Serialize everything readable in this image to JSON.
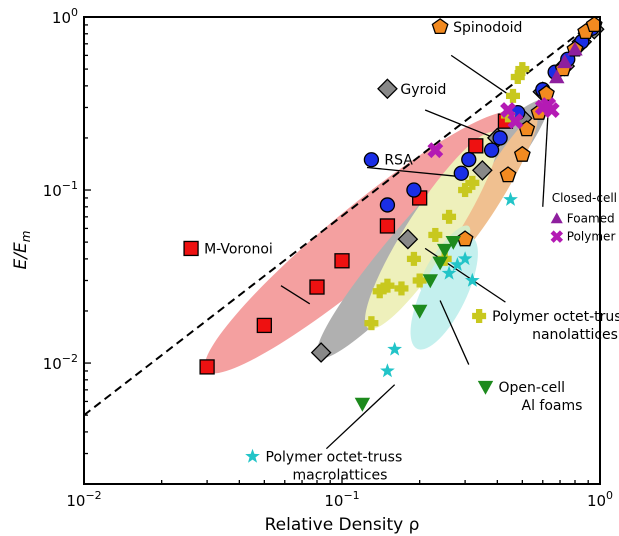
{
  "chart_data": {
    "type": "scatter",
    "title": "",
    "xlabel": "Relative Density ρ",
    "ylabel": "E/E_m",
    "xscale": "log",
    "yscale": "log",
    "xlim": [
      0.01,
      1
    ],
    "ylim": [
      0.002,
      1
    ],
    "x_ticks": [
      {
        "value": 0.01,
        "base": "10",
        "exp": "−2"
      },
      {
        "value": 0.1,
        "base": "10",
        "exp": "−1"
      },
      {
        "value": 1,
        "base": "10",
        "exp": "0"
      }
    ],
    "y_ticks": [
      {
        "value": 0.01,
        "base": "10",
        "exp": "−2"
      },
      {
        "value": 0.1,
        "base": "10",
        "exp": "−1"
      },
      {
        "value": 1,
        "base": "10",
        "exp": "0"
      }
    ],
    "reference_line": {
      "style": "dashed",
      "color": "#000000",
      "x": [
        0.01,
        1
      ],
      "y": [
        0.005,
        1
      ]
    },
    "bands": [
      {
        "name": "M-Voronoi",
        "color": "#f4a0a0",
        "x": [
          0.031,
          0.45
        ],
        "y": [
          0.0095,
          0.26
        ],
        "thickness": 0.16
      },
      {
        "name": "Gyroid",
        "color": "#b0b0b0",
        "x": [
          0.084,
          0.6
        ],
        "y": [
          0.0115,
          0.31
        ],
        "thickness": 0.14
      },
      {
        "name": "Spinodoid",
        "color": "#f0c090",
        "x": [
          0.27,
          0.55
        ],
        "y": [
          0.042,
          0.25
        ],
        "thickness": 0.13
      },
      {
        "name": "Polymer octet-truss nanolattices",
        "color": "#eef0bb",
        "x": [
          0.13,
          0.38
        ],
        "y": [
          0.017,
          0.2
        ],
        "thickness": 0.19
      },
      {
        "name": "Open-cell Al foams",
        "color": "#d4ecc8",
        "x": [
          0.21,
          0.3
        ],
        "y": [
          0.028,
          0.058
        ],
        "thickness": 0.24
      },
      {
        "name": "Polymer octet-truss macrolattices",
        "color": "#c4f0ee",
        "x": [
          0.2,
          0.31
        ],
        "y": [
          0.013,
          0.05
        ],
        "thickness": 0.34
      }
    ],
    "series": [
      {
        "name": "M-Voronoi",
        "marker": "square",
        "color": "#ee1111",
        "x": [
          0.03,
          0.05,
          0.08,
          0.1,
          0.15,
          0.2,
          0.33,
          0.43
        ],
        "y": [
          0.0095,
          0.0165,
          0.0275,
          0.039,
          0.062,
          0.09,
          0.18,
          0.25
        ]
      },
      {
        "name": "Gyroid",
        "marker": "diamond",
        "color": "#888888",
        "x": [
          0.083,
          0.18,
          0.35,
          0.4,
          0.5,
          0.6,
          0.73,
          0.85,
          0.95
        ],
        "y": [
          0.0115,
          0.052,
          0.13,
          0.2,
          0.26,
          0.37,
          0.52,
          0.72,
          0.85
        ]
      },
      {
        "name": "RSA",
        "marker": "circle",
        "color": "#1a2ee6",
        "x": [
          0.15,
          0.19,
          0.29,
          0.31,
          0.38,
          0.41,
          0.48,
          0.6,
          0.67,
          0.75,
          0.85,
          0.93
        ],
        "y": [
          0.082,
          0.1,
          0.125,
          0.15,
          0.17,
          0.2,
          0.28,
          0.38,
          0.48,
          0.57,
          0.72,
          0.86
        ]
      },
      {
        "name": "Spinodoid",
        "marker": "pentagon",
        "color": "#f28a20",
        "x": [
          0.3,
          0.44,
          0.5,
          0.52,
          0.58,
          0.62,
          0.72,
          0.8,
          0.88,
          0.95
        ],
        "y": [
          0.052,
          0.122,
          0.16,
          0.225,
          0.28,
          0.36,
          0.5,
          0.65,
          0.82,
          0.9
        ]
      },
      {
        "name": "Polymer octet-truss nanolattices",
        "marker": "plus",
        "color": "#c8c81e",
        "x": [
          0.13,
          0.14,
          0.15,
          0.17,
          0.19,
          0.2,
          0.23,
          0.25,
          0.26,
          0.3,
          0.32,
          0.44,
          0.46,
          0.48,
          0.5
        ],
        "y": [
          0.017,
          0.026,
          0.028,
          0.027,
          0.04,
          0.03,
          0.055,
          0.04,
          0.07,
          0.1,
          0.11,
          0.27,
          0.35,
          0.45,
          0.5
        ]
      },
      {
        "name": "Open-cell Al foams",
        "marker": "triangle-down",
        "color": "#1d8a1d",
        "x": [
          0.12,
          0.2,
          0.22,
          0.24,
          0.25,
          0.27
        ],
        "y": [
          0.0058,
          0.02,
          0.03,
          0.038,
          0.045,
          0.05
        ]
      },
      {
        "name": "Polymer octet-truss macrolattices",
        "marker": "star",
        "color": "#22c4c8",
        "x": [
          0.15,
          0.16,
          0.26,
          0.28,
          0.3,
          0.32,
          0.45
        ],
        "y": [
          0.009,
          0.012,
          0.033,
          0.037,
          0.04,
          0.03,
          0.088
        ]
      },
      {
        "name": "Foamed glass",
        "marker": "triangle-up",
        "color": "#8e1f9e",
        "x": [
          0.68,
          0.73,
          0.8
        ],
        "y": [
          0.45,
          0.55,
          0.65
        ]
      },
      {
        "name": "Polymer foams",
        "marker": "x",
        "color": "#b41ab4",
        "x": [
          0.23,
          0.44,
          0.47,
          0.6,
          0.63,
          0.65
        ],
        "y": [
          0.17,
          0.29,
          0.25,
          0.3,
          0.31,
          0.29
        ]
      }
    ],
    "annotations": [
      {
        "text": "Spinodoid",
        "series": "Spinodoid",
        "marker": "pentagon",
        "color": "#f28a20",
        "size": "large",
        "label": [
          0.24,
          0.82
        ],
        "pointer": [
          [
            0.265,
            0.6
          ],
          [
            0.45,
            0.35
          ]
        ]
      },
      {
        "text": "Gyroid",
        "series": "Gyroid",
        "marker": "diamond",
        "color": "#888888",
        "size": "large",
        "label": [
          0.15,
          0.36
        ],
        "pointer": [
          [
            0.21,
            0.29
          ],
          [
            0.39,
            0.2
          ]
        ]
      },
      {
        "text": "RSA",
        "series": "RSA",
        "marker": "circle",
        "color": "#1a2ee6",
        "size": "large",
        "label": [
          0.13,
          0.14
        ],
        "pointer": [
          [
            0.125,
            0.135
          ],
          [
            0.28,
            0.12
          ]
        ]
      },
      {
        "text": "M-Voronoi",
        "series": "M-Voronoi",
        "marker": "square",
        "color": "#ee1111",
        "size": "large",
        "label": [
          0.026,
          0.043
        ],
        "pointer": [
          [
            0.058,
            0.028
          ],
          [
            0.075,
            0.022
          ]
        ]
      },
      {
        "text": "Closed-cell foams",
        "series": "",
        "marker": "",
        "color": "",
        "size": "small",
        "label": [
          0.65,
          0.085
        ],
        "pointer": [
          [
            0.6,
            0.08
          ],
          [
            0.63,
            0.29
          ]
        ]
      },
      {
        "text": "Foamed glass",
        "series": "Foamed glass",
        "marker": "triangle-up",
        "color": "#8e1f9e",
        "size": "small",
        "label": [
          0.68,
          0.065
        ],
        "pointer": []
      },
      {
        "text": "Polymer foams",
        "series": "Polymer foams",
        "marker": "x",
        "color": "#b41ab4",
        "size": "small",
        "label": [
          0.68,
          0.051
        ],
        "pointer": []
      },
      {
        "text": "Polymer octet-truss\nnanolattices",
        "series": "Polymer octet-truss nanolattices",
        "marker": "plus",
        "color": "#c8c81e",
        "size": "large",
        "label": [
          0.34,
          0.0175
        ],
        "pointer": [
          [
            0.43,
            0.0225
          ],
          [
            0.21,
            0.046
          ]
        ]
      },
      {
        "text": "Open-cell\nAl foams",
        "series": "Open-cell Al foams",
        "marker": "triangle-down",
        "color": "#1d8a1d",
        "size": "large",
        "label": [
          0.36,
          0.0068
        ],
        "pointer": [
          [
            0.31,
            0.0098
          ],
          [
            0.24,
            0.023
          ]
        ]
      },
      {
        "text": "Polymer octet-truss\nmacrolattices",
        "series": "Polymer octet-truss macrolattices",
        "marker": "star",
        "color": "#22c4c8",
        "size": "large",
        "label": [
          0.045,
          0.0027
        ],
        "pointer": [
          [
            0.087,
            0.0032
          ],
          [
            0.16,
            0.0075
          ]
        ]
      }
    ]
  }
}
